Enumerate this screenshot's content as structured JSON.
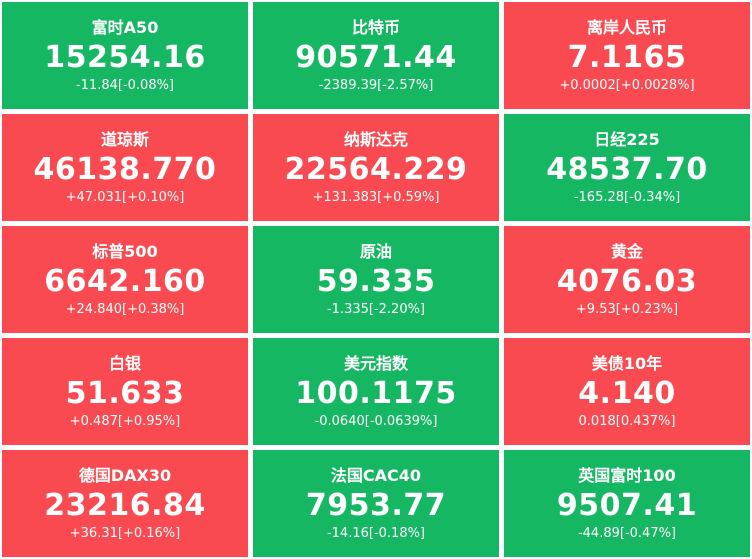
{
  "colors": {
    "up": "#f84a50",
    "down": "#16b763"
  },
  "tiles": [
    {
      "name": "富时A50",
      "value": "15254.16",
      "change": "-11.84[-0.08%]",
      "trend": "down"
    },
    {
      "name": "比特币",
      "value": "90571.44",
      "change": "-2389.39[-2.57%]",
      "trend": "down"
    },
    {
      "name": "离岸人民币",
      "value": "7.1165",
      "change": "+0.0002[+0.0028%]",
      "trend": "up"
    },
    {
      "name": "道琼斯",
      "value": "46138.770",
      "change": "+47.031[+0.10%]",
      "trend": "up"
    },
    {
      "name": "纳斯达克",
      "value": "22564.229",
      "change": "+131.383[+0.59%]",
      "trend": "up"
    },
    {
      "name": "日经225",
      "value": "48537.70",
      "change": "-165.28[-0.34%]",
      "trend": "down"
    },
    {
      "name": "标普500",
      "value": "6642.160",
      "change": "+24.840[+0.38%]",
      "trend": "up"
    },
    {
      "name": "原油",
      "value": "59.335",
      "change": "-1.335[-2.20%]",
      "trend": "down"
    },
    {
      "name": "黄金",
      "value": "4076.03",
      "change": "+9.53[+0.23%]",
      "trend": "up"
    },
    {
      "name": "白银",
      "value": "51.633",
      "change": "+0.487[+0.95%]",
      "trend": "up"
    },
    {
      "name": "美元指数",
      "value": "100.1175",
      "change": "-0.0640[-0.0639%]",
      "trend": "down"
    },
    {
      "name": "美债10年",
      "value": "4.140",
      "change": "0.018[0.437%]",
      "trend": "up"
    },
    {
      "name": "德国DAX30",
      "value": "23216.84",
      "change": "+36.31[+0.16%]",
      "trend": "up"
    },
    {
      "name": "法国CAC40",
      "value": "7953.77",
      "change": "-14.16[-0.18%]",
      "trend": "down"
    },
    {
      "name": "英国富时100",
      "value": "9507.41",
      "change": "-44.89[-0.47%]",
      "trend": "down"
    }
  ]
}
